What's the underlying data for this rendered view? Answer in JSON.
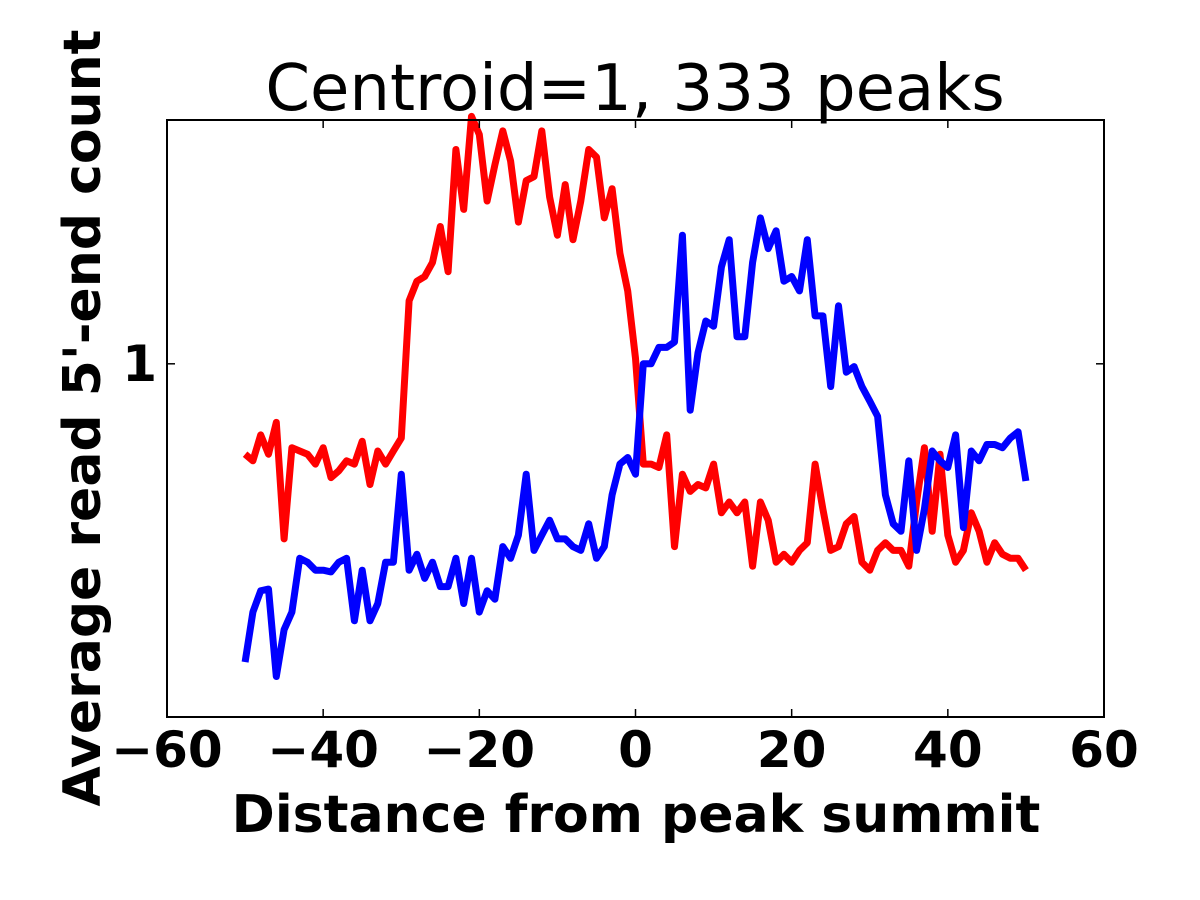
{
  "chart_data": {
    "type": "line",
    "title": "Centroid=1, 333 peaks",
    "xlabel": "Distance from peak summit",
    "ylabel": "Average read 5'-end count",
    "xlim": [
      -60,
      60
    ],
    "ylim": [
      0.53,
      1.55
    ],
    "yscale": "log",
    "grid": false,
    "x_ticks": [
      -60,
      -40,
      -20,
      0,
      20,
      40,
      60
    ],
    "x_tick_labels": [
      "−60",
      "−40",
      "−20",
      "0",
      "20",
      "40",
      "60"
    ],
    "y_ticks": [
      1
    ],
    "y_tick_labels": [
      "1"
    ],
    "series": [
      {
        "color": "#ff0000",
        "x": [
          -50,
          -49,
          -48,
          -47,
          -46,
          -45,
          -44,
          -43,
          -42,
          -41,
          -40,
          -39,
          -38,
          -37,
          -36,
          -35,
          -34,
          -33,
          -32,
          -31,
          -30,
          -29,
          -28,
          -27,
          -26,
          -25,
          -24,
          -23,
          -22,
          -21,
          -20,
          -19,
          -18,
          -17,
          -16,
          -15,
          -14,
          -13,
          -12,
          -11,
          -10,
          -9,
          -8,
          -7,
          -6,
          -5,
          -4,
          -3,
          -2,
          -1,
          0,
          1,
          2,
          3,
          4,
          5,
          6,
          7,
          8,
          9,
          10,
          11,
          12,
          13,
          14,
          15,
          16,
          17,
          18,
          19,
          20,
          21,
          22,
          23,
          24,
          25,
          26,
          27,
          28,
          29,
          30,
          31,
          32,
          33,
          34,
          35,
          36,
          37,
          38,
          39,
          40,
          41,
          42,
          43,
          44,
          45,
          46,
          47,
          48,
          49,
          50
        ],
        "y": [
          0.85,
          0.84,
          0.88,
          0.85,
          0.9,
          0.73,
          0.86,
          0.855,
          0.85,
          0.835,
          0.86,
          0.815,
          0.825,
          0.84,
          0.835,
          0.87,
          0.805,
          0.855,
          0.835,
          0.855,
          0.875,
          1.12,
          1.16,
          1.17,
          1.2,
          1.28,
          1.18,
          1.47,
          1.32,
          1.56,
          1.51,
          1.34,
          1.43,
          1.52,
          1.44,
          1.29,
          1.39,
          1.4,
          1.52,
          1.35,
          1.26,
          1.38,
          1.25,
          1.34,
          1.47,
          1.45,
          1.3,
          1.37,
          1.22,
          1.14,
          1.01,
          0.835,
          0.835,
          0.83,
          0.88,
          0.72,
          0.82,
          0.795,
          0.805,
          0.8,
          0.835,
          0.765,
          0.78,
          0.765,
          0.78,
          0.695,
          0.78,
          0.755,
          0.7,
          0.71,
          0.7,
          0.715,
          0.725,
          0.835,
          0.77,
          0.715,
          0.72,
          0.75,
          0.76,
          0.7,
          0.69,
          0.715,
          0.725,
          0.715,
          0.715,
          0.695,
          0.78,
          0.86,
          0.74,
          0.85,
          0.735,
          0.7,
          0.715,
          0.765,
          0.74,
          0.7,
          0.725,
          0.71,
          0.705,
          0.705,
          0.69
        ]
      },
      {
        "color": "#0000ff",
        "x": [
          -50,
          -49,
          -48,
          -47,
          -46,
          -45,
          -44,
          -43,
          -42,
          -41,
          -40,
          -39,
          -38,
          -37,
          -36,
          -35,
          -34,
          -33,
          -32,
          -31,
          -30,
          -29,
          -28,
          -27,
          -26,
          -25,
          -24,
          -23,
          -22,
          -21,
          -20,
          -19,
          -18,
          -17,
          -16,
          -15,
          -14,
          -13,
          -12,
          -11,
          -10,
          -9,
          -8,
          -7,
          -6,
          -5,
          -4,
          -3,
          -2,
          -1,
          0,
          1,
          2,
          3,
          4,
          5,
          6,
          7,
          8,
          9,
          10,
          11,
          12,
          13,
          14,
          15,
          16,
          17,
          18,
          19,
          20,
          21,
          22,
          23,
          24,
          25,
          26,
          27,
          28,
          29,
          30,
          31,
          32,
          33,
          34,
          35,
          36,
          37,
          38,
          39,
          40,
          41,
          42,
          43,
          44,
          45,
          46,
          47,
          48,
          49,
          50
        ],
        "y": [
          0.585,
          0.64,
          0.665,
          0.667,
          0.57,
          0.62,
          0.64,
          0.705,
          0.7,
          0.69,
          0.69,
          0.688,
          0.7,
          0.705,
          0.63,
          0.69,
          0.63,
          0.65,
          0.7,
          0.7,
          0.82,
          0.69,
          0.71,
          0.68,
          0.7,
          0.67,
          0.67,
          0.705,
          0.65,
          0.705,
          0.64,
          0.665,
          0.655,
          0.72,
          0.705,
          0.735,
          0.82,
          0.715,
          0.735,
          0.755,
          0.73,
          0.73,
          0.72,
          0.715,
          0.75,
          0.705,
          0.72,
          0.79,
          0.835,
          0.845,
          0.82,
          1.0,
          1.0,
          1.03,
          1.03,
          1.04,
          1.26,
          0.92,
          1.02,
          1.08,
          1.07,
          1.19,
          1.25,
          1.05,
          1.05,
          1.2,
          1.3,
          1.23,
          1.27,
          1.16,
          1.17,
          1.14,
          1.25,
          1.09,
          1.09,
          0.96,
          1.11,
          0.985,
          0.995,
          0.96,
          0.935,
          0.91,
          0.79,
          0.75,
          0.74,
          0.84,
          0.715,
          0.77,
          0.855,
          0.84,
          0.83,
          0.88,
          0.745,
          0.855,
          0.84,
          0.865,
          0.865,
          0.86,
          0.875,
          0.885,
          0.81
        ]
      }
    ]
  }
}
